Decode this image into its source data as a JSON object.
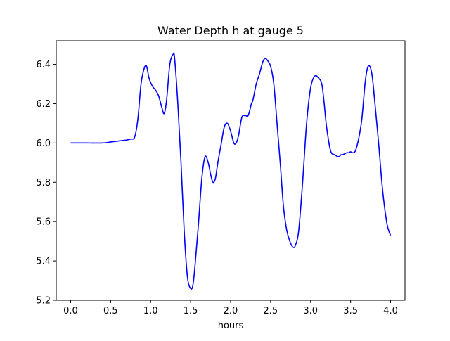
{
  "chart_data": {
    "type": "line",
    "title": "Water Depth h at gauge 5",
    "xlabel": "hours",
    "ylabel": "",
    "xlim": [
      -0.18,
      4.18
    ],
    "ylim": [
      5.2,
      6.52
    ],
    "xticks": [
      0.0,
      0.5,
      1.0,
      1.5,
      2.0,
      2.5,
      3.0,
      3.5,
      4.0
    ],
    "xtick_labels": [
      "0.0",
      "0.5",
      "1.0",
      "1.5",
      "2.0",
      "2.5",
      "3.0",
      "3.5",
      "4.0"
    ],
    "yticks": [
      5.2,
      5.4,
      5.6,
      5.8,
      6.0,
      6.2,
      6.4
    ],
    "ytick_labels": [
      "5.2",
      "5.4",
      "5.6",
      "5.8",
      "6.0",
      "6.2",
      "6.4"
    ],
    "grid": false,
    "legend": "none",
    "series": [
      {
        "color": "#0000ff",
        "x": [
          0.0,
          0.2,
          0.4,
          0.5,
          0.6,
          0.7,
          0.75,
          0.8,
          0.84,
          0.88,
          0.92,
          0.95,
          0.98,
          1.02,
          1.06,
          1.1,
          1.14,
          1.17,
          1.2,
          1.24,
          1.28,
          1.3,
          1.34,
          1.38,
          1.42,
          1.46,
          1.5,
          1.53,
          1.56,
          1.6,
          1.64,
          1.68,
          1.72,
          1.75,
          1.78,
          1.81,
          1.84,
          1.88,
          1.92,
          1.96,
          2.0,
          2.04,
          2.07,
          2.1,
          2.14,
          2.18,
          2.22,
          2.26,
          2.28,
          2.32,
          2.36,
          2.4,
          2.43,
          2.46,
          2.5,
          2.54,
          2.58,
          2.62,
          2.66,
          2.7,
          2.74,
          2.78,
          2.81,
          2.85,
          2.9,
          2.95,
          3.0,
          3.05,
          3.1,
          3.14,
          3.17,
          3.2,
          3.25,
          3.3,
          3.35,
          3.38,
          3.4,
          3.45,
          3.48,
          3.5,
          3.53,
          3.56,
          3.6,
          3.64,
          3.68,
          3.71,
          3.74,
          3.77,
          3.8,
          3.85,
          3.9,
          3.95,
          3.98,
          4.0
        ],
        "y": [
          6.0,
          6.0,
          6.0,
          6.005,
          6.01,
          6.015,
          6.02,
          6.03,
          6.12,
          6.3,
          6.38,
          6.39,
          6.33,
          6.29,
          6.27,
          6.24,
          6.18,
          6.15,
          6.22,
          6.4,
          6.45,
          6.43,
          6.2,
          5.9,
          5.55,
          5.32,
          5.26,
          5.28,
          5.4,
          5.6,
          5.82,
          5.93,
          5.9,
          5.84,
          5.8,
          5.82,
          5.9,
          5.99,
          6.08,
          6.1,
          6.06,
          6.0,
          6.0,
          6.04,
          6.13,
          6.14,
          6.14,
          6.2,
          6.22,
          6.3,
          6.35,
          6.41,
          6.43,
          6.42,
          6.39,
          6.3,
          6.1,
          5.9,
          5.68,
          5.56,
          5.5,
          5.47,
          5.48,
          5.55,
          5.8,
          6.1,
          6.28,
          6.34,
          6.33,
          6.3,
          6.2,
          6.08,
          5.96,
          5.94,
          5.93,
          5.94,
          5.94,
          5.95,
          5.95,
          5.955,
          5.95,
          5.96,
          6.02,
          6.12,
          6.3,
          6.38,
          6.39,
          6.34,
          6.22,
          6.0,
          5.76,
          5.6,
          5.55,
          5.53
        ]
      }
    ]
  }
}
